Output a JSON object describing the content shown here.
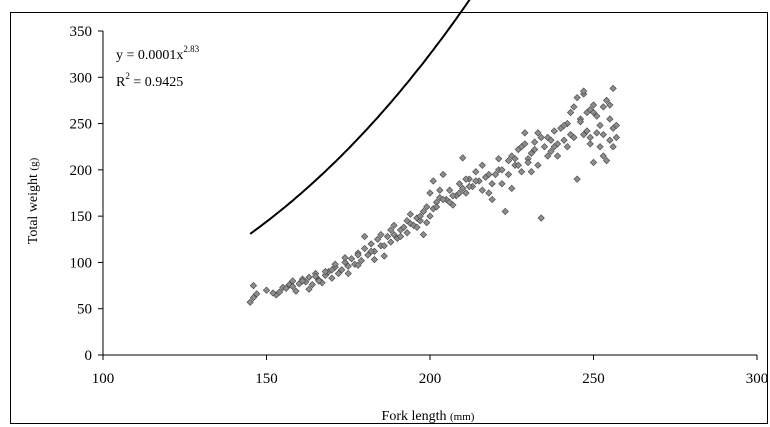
{
  "chart_data": {
    "type": "scatter",
    "xlabel": "Fork length",
    "xlabel_unit": "(mm)",
    "ylabel": "Total weight",
    "ylabel_unit": "(g)",
    "xlim": [
      100,
      300
    ],
    "ylim": [
      0,
      350
    ],
    "x_ticks": [
      "100",
      "150",
      "200",
      "250",
      "300"
    ],
    "y_ticks": [
      "0",
      "50",
      "100",
      "150",
      "200",
      "250",
      "300",
      "350"
    ],
    "grid": false,
    "legend": "none",
    "marker_color": "#8c8c8c",
    "trendline": {
      "type": "power",
      "a": 0.0001,
      "b": 2.83,
      "x_range": [
        145,
        257
      ],
      "equation_prefix": "y = 0.0001x",
      "equation_exponent": "2.83",
      "r2_prefix": "R",
      "r2_exponent": "2",
      "r2_value": " = 0.9425"
    },
    "points": [
      [
        145,
        57
      ],
      [
        146,
        62
      ],
      [
        146,
        75
      ],
      [
        147,
        66
      ],
      [
        153,
        65
      ],
      [
        154,
        68
      ],
      [
        155,
        73
      ],
      [
        156,
        72
      ],
      [
        158,
        80
      ],
      [
        159,
        69
      ],
      [
        160,
        77
      ],
      [
        161,
        82
      ],
      [
        162,
        79
      ],
      [
        163,
        84
      ],
      [
        164,
        76
      ],
      [
        165,
        88
      ],
      [
        166,
        81
      ],
      [
        167,
        78
      ],
      [
        168,
        86
      ],
      [
        169,
        90
      ],
      [
        170,
        83
      ],
      [
        171,
        95
      ],
      [
        172,
        88
      ],
      [
        173,
        92
      ],
      [
        174,
        100
      ],
      [
        175,
        96
      ],
      [
        176,
        104
      ],
      [
        177,
        98
      ],
      [
        178,
        110
      ],
      [
        179,
        102
      ],
      [
        180,
        115
      ],
      [
        181,
        108
      ],
      [
        182,
        120
      ],
      [
        183,
        112
      ],
      [
        184,
        125
      ],
      [
        185,
        118
      ],
      [
        186,
        107
      ],
      [
        187,
        128
      ],
      [
        188,
        122
      ],
      [
        189,
        130
      ],
      [
        190,
        126
      ],
      [
        191,
        135
      ],
      [
        192,
        138
      ],
      [
        193,
        132
      ],
      [
        194,
        142
      ],
      [
        195,
        140
      ],
      [
        196,
        148
      ],
      [
        197,
        145
      ],
      [
        198,
        155
      ],
      [
        198,
        130
      ],
      [
        199,
        160
      ],
      [
        200,
        150
      ],
      [
        200,
        175
      ],
      [
        201,
        188
      ],
      [
        202,
        165
      ],
      [
        203,
        170
      ],
      [
        204,
        195
      ],
      [
        205,
        168
      ],
      [
        206,
        178
      ],
      [
        207,
        162
      ],
      [
        208,
        172
      ],
      [
        209,
        185
      ],
      [
        210,
        180
      ],
      [
        210,
        213
      ],
      [
        211,
        175
      ],
      [
        212,
        190
      ],
      [
        213,
        182
      ],
      [
        214,
        198
      ],
      [
        215,
        188
      ],
      [
        216,
        205
      ],
      [
        217,
        192
      ],
      [
        218,
        175
      ],
      [
        219,
        168
      ],
      [
        220,
        195
      ],
      [
        221,
        200
      ],
      [
        222,
        185
      ],
      [
        223,
        155
      ],
      [
        224,
        210
      ],
      [
        225,
        215
      ],
      [
        226,
        205
      ],
      [
        227,
        222
      ],
      [
        228,
        198
      ],
      [
        229,
        240
      ],
      [
        230,
        212
      ],
      [
        231,
        218
      ],
      [
        232,
        230
      ],
      [
        233,
        205
      ],
      [
        234,
        148
      ],
      [
        235,
        225
      ],
      [
        236,
        235
      ],
      [
        237,
        220
      ],
      [
        238,
        242
      ],
      [
        239,
        228
      ],
      [
        240,
        245
      ],
      [
        241,
        232
      ],
      [
        242,
        250
      ],
      [
        243,
        238
      ],
      [
        244,
        268
      ],
      [
        245,
        190
      ],
      [
        246,
        255
      ],
      [
        247,
        282
      ],
      [
        248,
        242
      ],
      [
        249,
        228
      ],
      [
        250,
        262
      ],
      [
        251,
        240
      ],
      [
        252,
        248
      ],
      [
        253,
        215
      ],
      [
        254,
        275
      ],
      [
        255,
        270
      ],
      [
        256,
        288
      ],
      [
        256,
        245
      ],
      [
        257,
        235
      ],
      [
        150,
        70
      ],
      [
        152,
        67
      ],
      [
        157,
        76
      ],
      [
        163,
        71
      ],
      [
        166,
        80
      ],
      [
        170,
        92
      ],
      [
        175,
        88
      ],
      [
        178,
        97
      ],
      [
        180,
        128
      ],
      [
        183,
        103
      ],
      [
        186,
        118
      ],
      [
        188,
        135
      ],
      [
        191,
        128
      ],
      [
        194,
        152
      ],
      [
        196,
        138
      ],
      [
        199,
        143
      ],
      [
        201,
        158
      ],
      [
        203,
        178
      ],
      [
        206,
        165
      ],
      [
        209,
        175
      ],
      [
        212,
        182
      ],
      [
        214,
        188
      ],
      [
        216,
        178
      ],
      [
        219,
        185
      ],
      [
        222,
        200
      ],
      [
        224,
        195
      ],
      [
        226,
        212
      ],
      [
        228,
        225
      ],
      [
        230,
        208
      ],
      [
        232,
        222
      ],
      [
        234,
        235
      ],
      [
        236,
        215
      ],
      [
        238,
        225
      ],
      [
        239,
        215
      ],
      [
        241,
        248
      ],
      [
        242,
        225
      ],
      [
        244,
        235
      ],
      [
        246,
        252
      ],
      [
        247,
        238
      ],
      [
        248,
        262
      ],
      [
        249,
        235
      ],
      [
        250,
        208
      ],
      [
        251,
        258
      ],
      [
        252,
        225
      ],
      [
        253,
        238
      ],
      [
        254,
        210
      ],
      [
        255,
        232
      ],
      [
        257,
        248
      ],
      [
        237,
        232
      ],
      [
        233,
        240
      ],
      [
        229,
        228
      ],
      [
        227,
        205
      ],
      [
        231,
        198
      ],
      [
        225,
        180
      ],
      [
        221,
        212
      ],
      [
        218,
        195
      ],
      [
        211,
        190
      ],
      [
        207,
        172
      ],
      [
        204,
        168
      ],
      [
        202,
        160
      ],
      [
        197,
        150
      ],
      [
        193,
        145
      ],
      [
        189,
        140
      ],
      [
        185,
        130
      ],
      [
        182,
        112
      ],
      [
        178,
        108
      ],
      [
        174,
        105
      ],
      [
        171,
        98
      ],
      [
        168,
        90
      ],
      [
        165,
        85
      ],
      [
        161,
        80
      ],
      [
        158,
        74
      ],
      [
        243,
        262
      ],
      [
        245,
        278
      ],
      [
        247,
        285
      ],
      [
        249,
        265
      ],
      [
        250,
        270
      ],
      [
        253,
        268
      ],
      [
        255,
        255
      ],
      [
        256,
        225
      ]
    ]
  }
}
